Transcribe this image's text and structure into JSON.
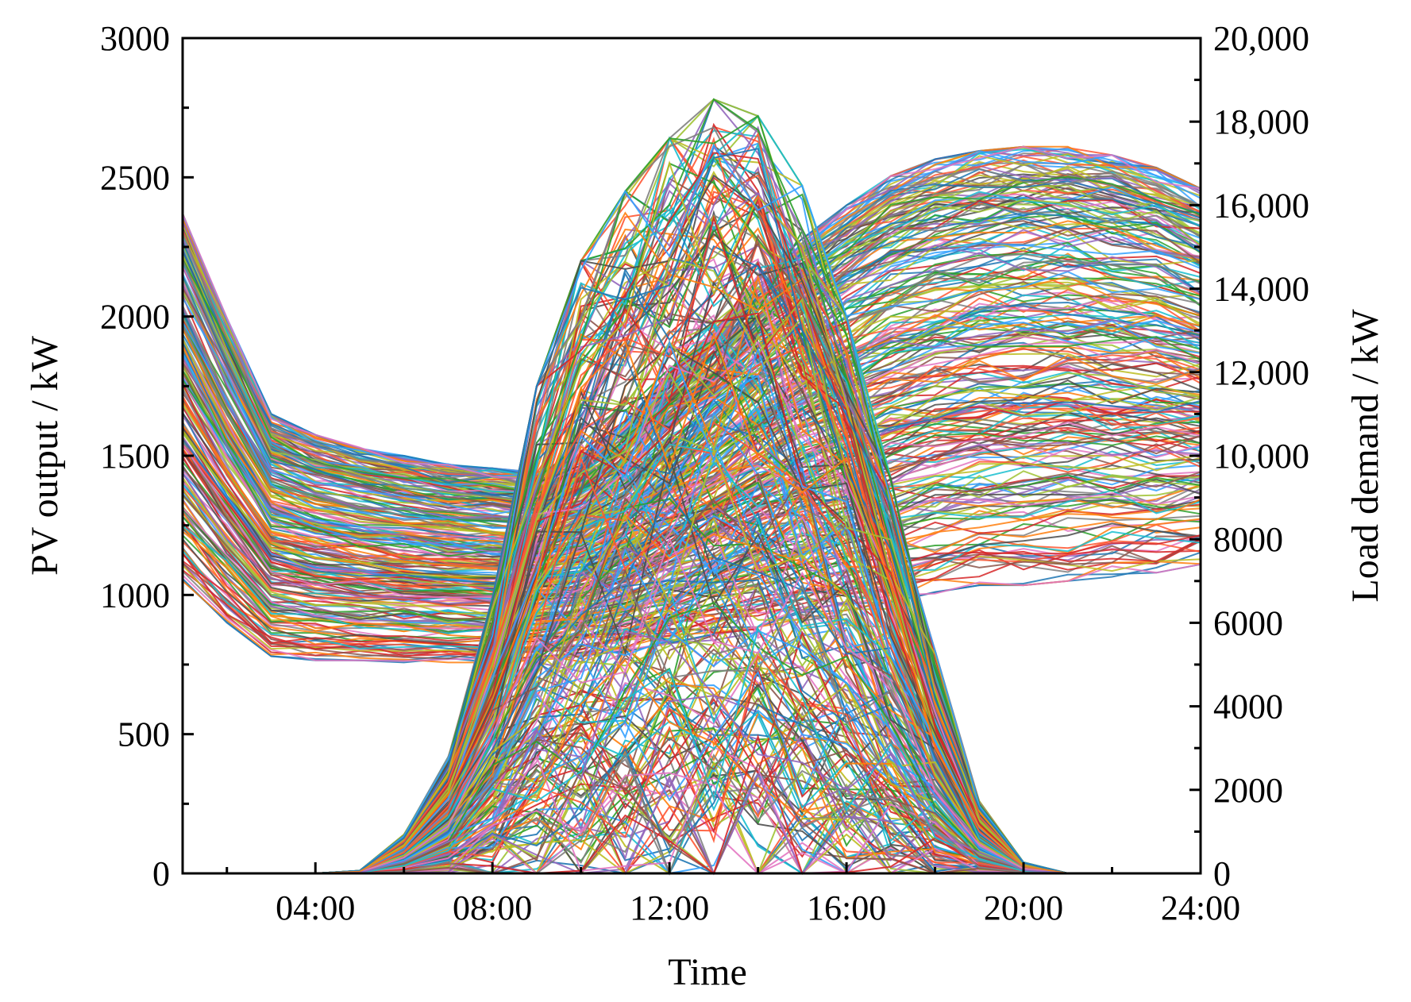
{
  "chart_data": {
    "type": "line",
    "description_series": "Thousands of daily scenario curves: PV output (left axis) and load demand (right axis)",
    "x_label": "Time",
    "x_ticks": [
      "04:00",
      "08:00",
      "12:00",
      "16:00",
      "20:00",
      "24:00"
    ],
    "x_range_hours": [
      1,
      24
    ],
    "y_left": {
      "label": "PV output / kW",
      "range": [
        0,
        3000
      ],
      "ticks": [
        "0",
        "500",
        "1000",
        "1500",
        "2000",
        "2500",
        "3000"
      ]
    },
    "y_right": {
      "label": "Load demand / kW",
      "range": [
        0,
        20000
      ],
      "ticks": [
        "0",
        "2000",
        "4000",
        "6000",
        "8000",
        "10,000",
        "12,000",
        "14,000",
        "16,000",
        "18,000",
        "20,000"
      ]
    },
    "hours": [
      1,
      2,
      3,
      4,
      5,
      6,
      7,
      8,
      9,
      10,
      11,
      12,
      13,
      14,
      15,
      16,
      17,
      18,
      19,
      20,
      21,
      22,
      23,
      24
    ],
    "pv_envelope_max_kW": [
      0,
      0,
      0,
      0,
      10,
      140,
      420,
      990,
      1750,
      2200,
      2450,
      2640,
      2780,
      2720,
      2470,
      2000,
      1420,
      800,
      260,
      40,
      0,
      0,
      0,
      0
    ],
    "load_envelope_max_kW": [
      15800,
      13300,
      11000,
      10500,
      10200,
      10000,
      9800,
      9700,
      9600,
      10000,
      10800,
      12000,
      13000,
      14300,
      15200,
      16000,
      16700,
      17100,
      17300,
      17400,
      17400,
      17200,
      16900,
      16400
    ],
    "load_envelope_min_kW": [
      7000,
      6000,
      5200,
      5100,
      5100,
      5050,
      5050,
      5050,
      5100,
      5200,
      5300,
      5500,
      5700,
      5900,
      6100,
      6300,
      6500,
      6700,
      6900,
      6900,
      7000,
      7100,
      7200,
      7400
    ],
    "scenario_count_drawn": 260,
    "palette": [
      "#1f77b4",
      "#ff7f0e",
      "#2ca02c",
      "#d62728",
      "#9467bd",
      "#8c564b",
      "#e377c2",
      "#7f7f7f",
      "#bcbd22",
      "#17becf",
      "#4c4c4c",
      "#ff5733",
      "#33a1ff",
      "#a0c334"
    ]
  }
}
